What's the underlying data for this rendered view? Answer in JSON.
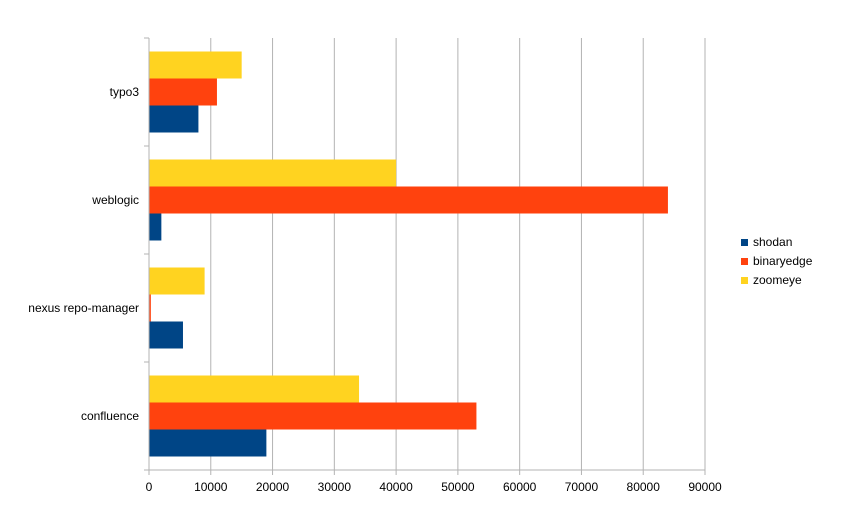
{
  "chart_data": {
    "type": "bar",
    "orientation": "horizontal",
    "categories": [
      "typo3",
      "weblogic",
      "nexus repo-manager",
      "confluence"
    ],
    "series": [
      {
        "name": "shodan",
        "color": "#004586",
        "values": [
          8000,
          2000,
          5500,
          19000
        ]
      },
      {
        "name": "binaryedge",
        "color": "#ff420e",
        "values": [
          11000,
          84000,
          300,
          53000
        ]
      },
      {
        "name": "zoomeye",
        "color": "#ffd320",
        "values": [
          15000,
          40000,
          9000,
          34000
        ]
      }
    ],
    "x_ticks": [
      "0",
      "10000",
      "20000",
      "30000",
      "40000",
      "50000",
      "60000",
      "70000",
      "80000",
      "90000"
    ],
    "xlim": [
      0,
      90000
    ],
    "grid": "vertical",
    "legend_position": "right"
  }
}
